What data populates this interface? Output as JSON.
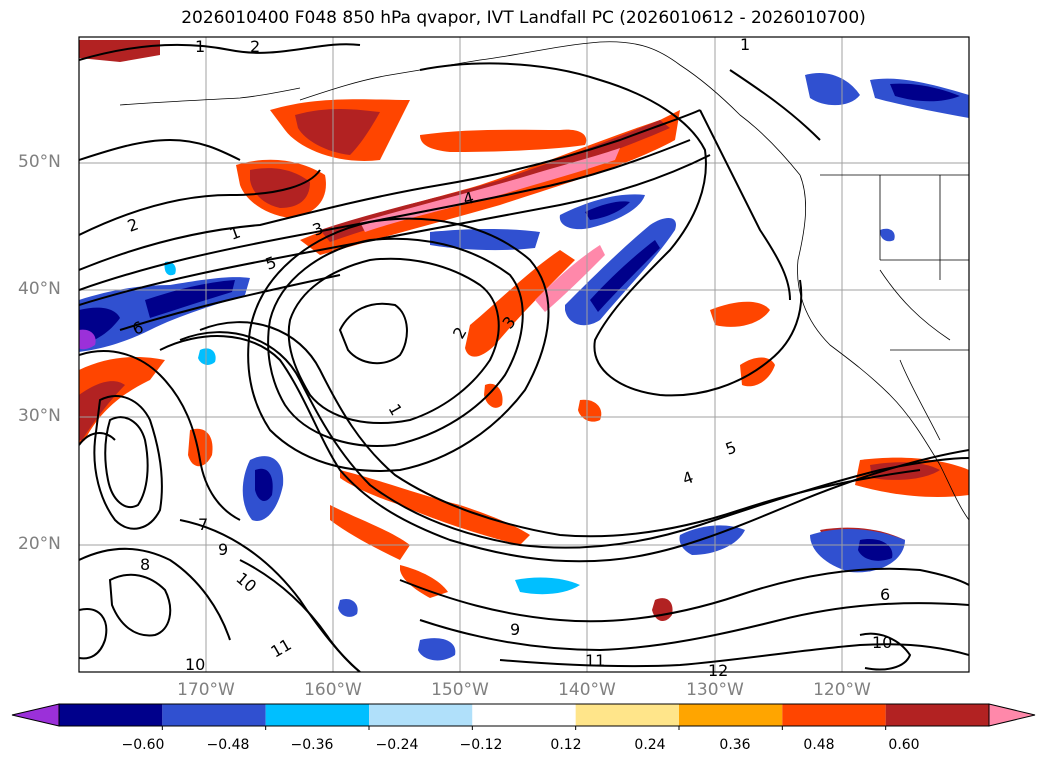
{
  "title": "2026010400 F048 850 hPa qvapor, IVT Landfall PC (2026010612 - 2026010700)",
  "map": {
    "lat_labels": [
      "50°N",
      "40°N",
      "30°N",
      "20°N"
    ],
    "lon_labels": [
      "170°W",
      "160°W",
      "150°W",
      "140°W",
      "130°W",
      "120°W"
    ],
    "extent": {
      "lon_min": -180,
      "lon_max": -110,
      "lat_min": 10,
      "lat_max": 60
    },
    "qvapor_contours": [
      "1",
      "1",
      "1",
      "2",
      "2",
      "2",
      "3",
      "3",
      "4",
      "4",
      "5",
      "5",
      "6",
      "7",
      "8",
      "9",
      "9",
      "10",
      "10",
      "11",
      "11",
      "12"
    ],
    "pc_colors": {
      "neg_extreme": "#9b30d9",
      "neg_060": "#00008b",
      "neg_048": "#3050d0",
      "neg_036": "#00bfff",
      "neg_024": "#b0e0fa",
      "neutral": "#ffffff",
      "pos_012": "#ffe58a",
      "pos_024": "#ffa500",
      "pos_036": "#ff4500",
      "pos_048": "#b22222",
      "pos_060": "#ff88aa"
    }
  },
  "colorbar": {
    "tick_labels": [
      "−0.60",
      "−0.48",
      "−0.36",
      "−0.24",
      "−0.12",
      "0.12",
      "0.24",
      "0.36",
      "0.48",
      "0.60"
    ],
    "colors": [
      "#9b30d9",
      "#00008b",
      "#3050d0",
      "#00bfff",
      "#b0e0fa",
      "#ffffff",
      "#ffe58a",
      "#ffa500",
      "#ff4500",
      "#b22222",
      "#ff88aa"
    ]
  }
}
